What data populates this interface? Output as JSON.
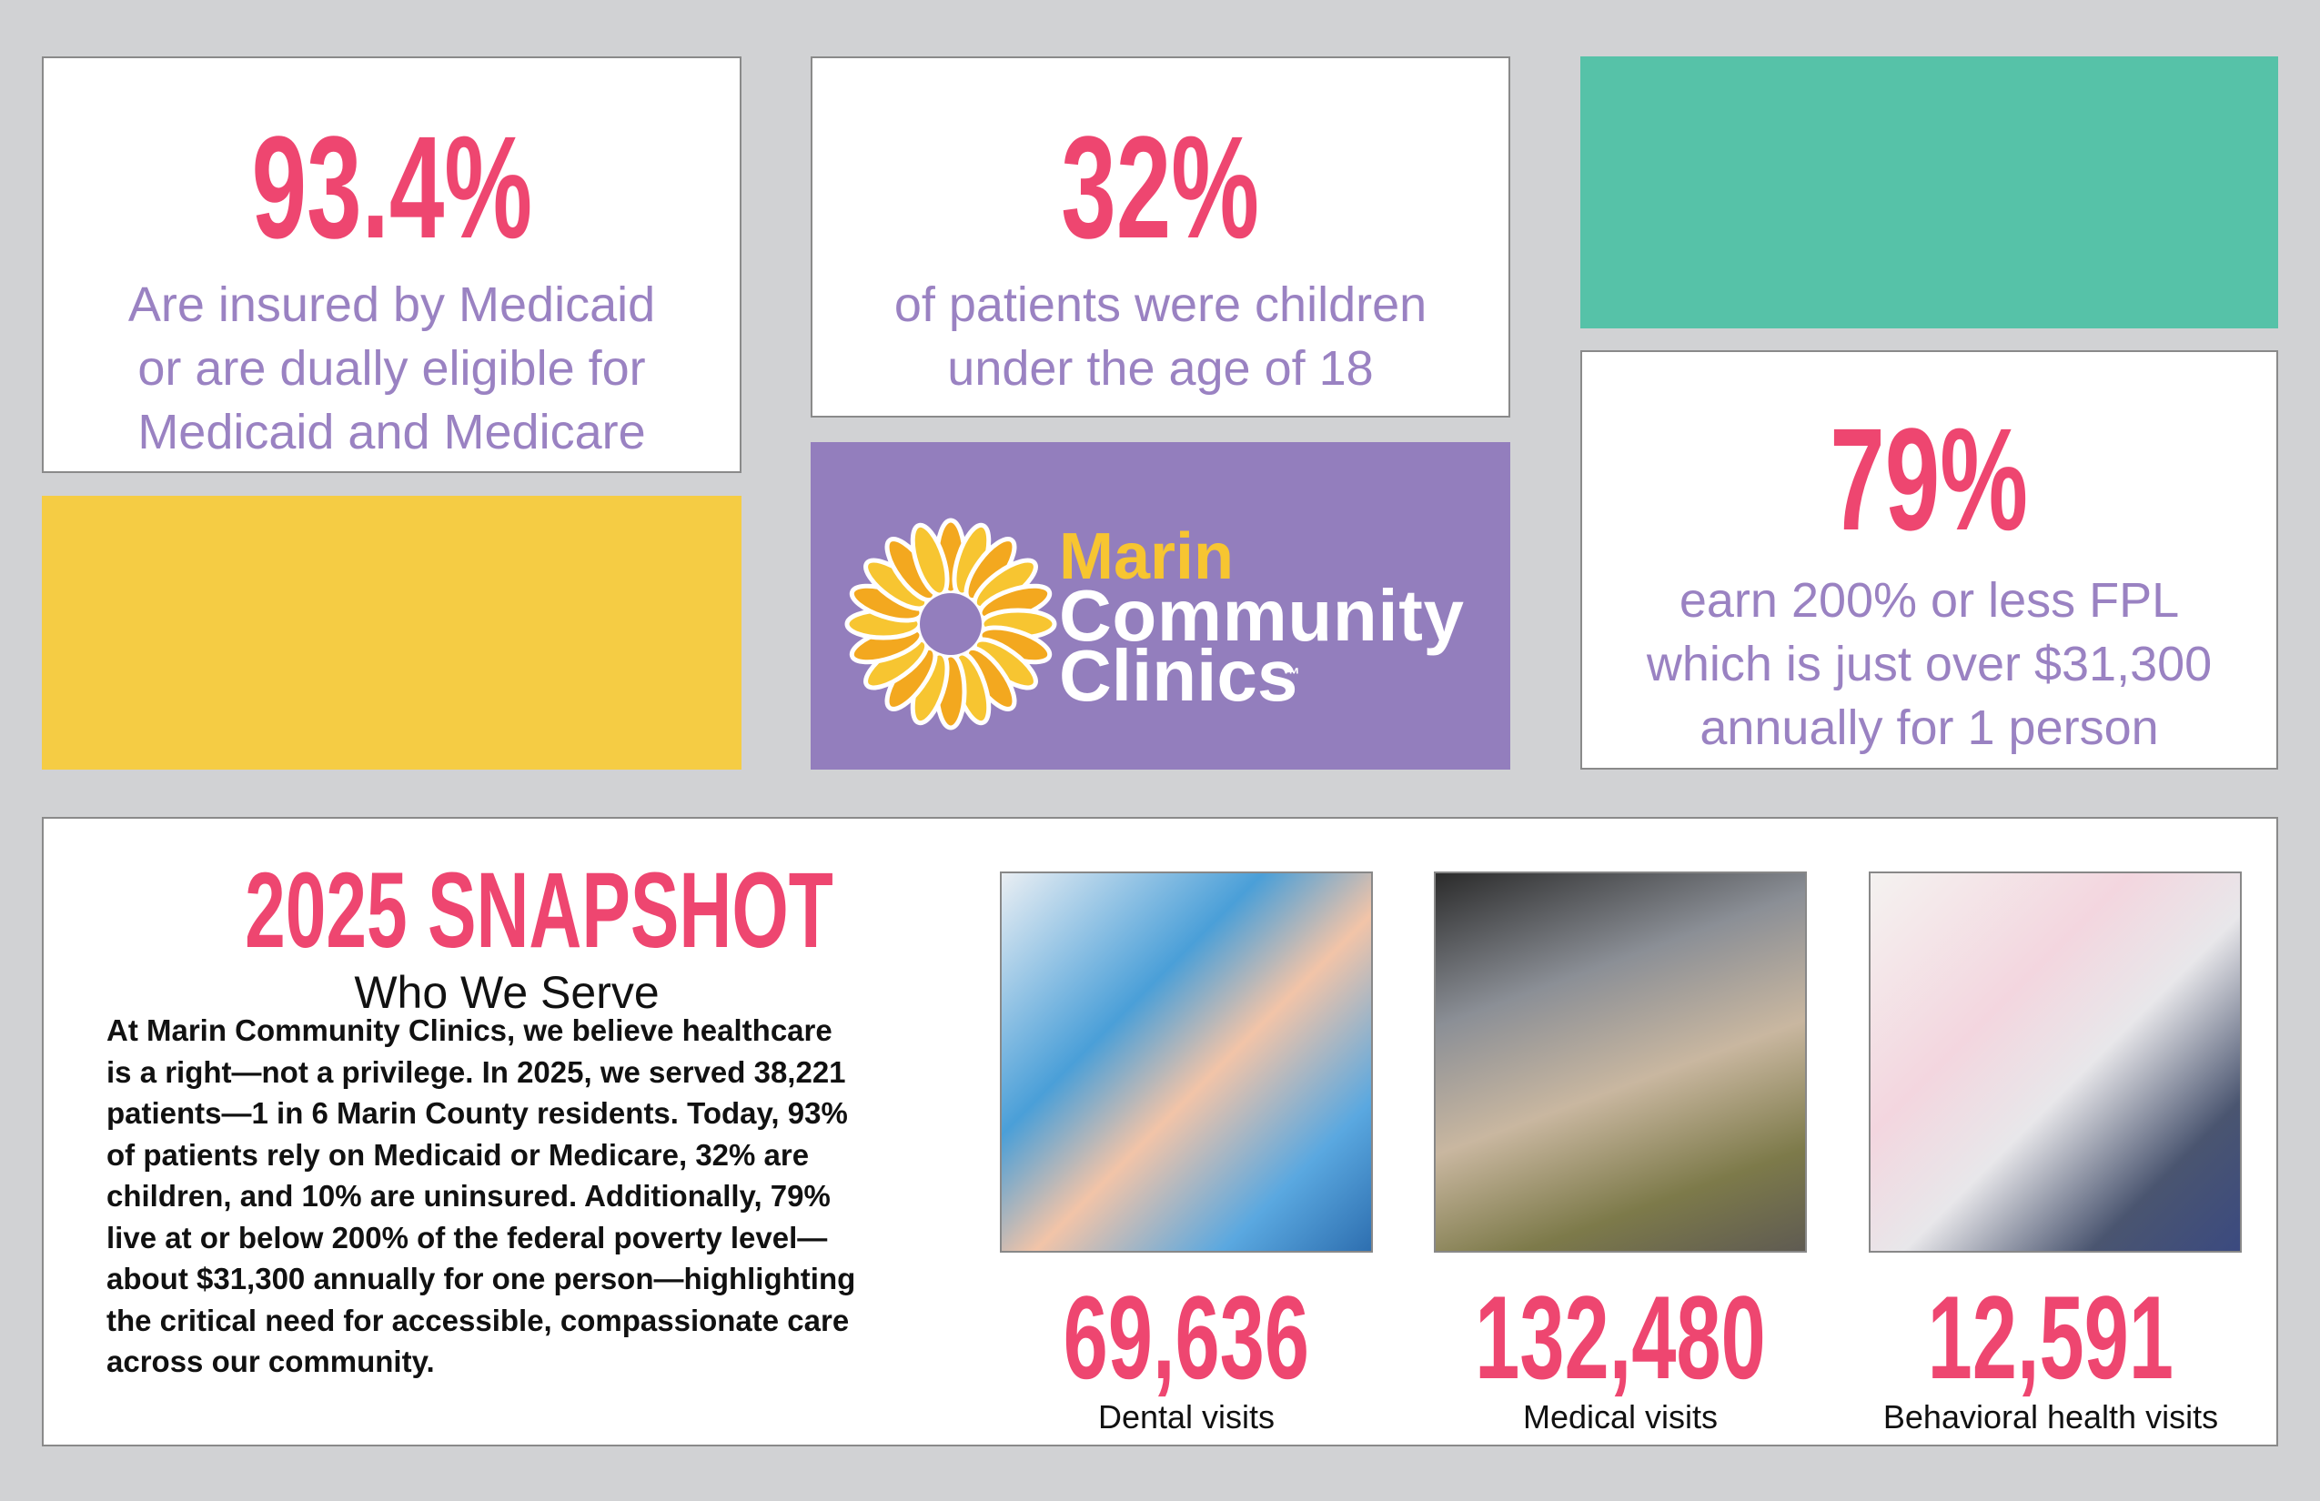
{
  "stats": [
    {
      "number": "93.4%",
      "lines": [
        "Are insured by Medicaid",
        "or are dually eligible for",
        "Medicaid and Medicare"
      ]
    },
    {
      "number": "32%",
      "lines": [
        "of patients were children",
        "under the age of 18"
      ]
    },
    {
      "number": "79%",
      "lines": [
        "earn 200% or less FPL",
        "which is just over $31,300",
        "annually for 1 person"
      ]
    }
  ],
  "logo": {
    "line1": "Marin",
    "line2": "Community",
    "line3": "Clinics",
    "mark": "™"
  },
  "snapshot": {
    "title": "2025 SNAPSHOT",
    "subtitle": "Who We Serve",
    "lines": [
      "At Marin Community Clinics, we believe healthcare",
      "is a right—not a privilege. In 2025, we served 38,221",
      "patients—1 in 6 Marin County residents. Today, 93%",
      "of patients rely on Medicaid or Medicare, 32% are",
      "children, and 10% are uninsured. Additionally, 79%",
      "live at or below 200% of the federal poverty level—",
      "about $31,300 annually for one person—highlighting",
      "the critical need for accessible, compassionate care",
      "across our community."
    ]
  },
  "visits": [
    {
      "number": "69,636",
      "label": "Dental visits"
    },
    {
      "number": "132,480",
      "label": "Medical visits"
    },
    {
      "number": "12,591",
      "label": "Behavioral health visits"
    }
  ]
}
